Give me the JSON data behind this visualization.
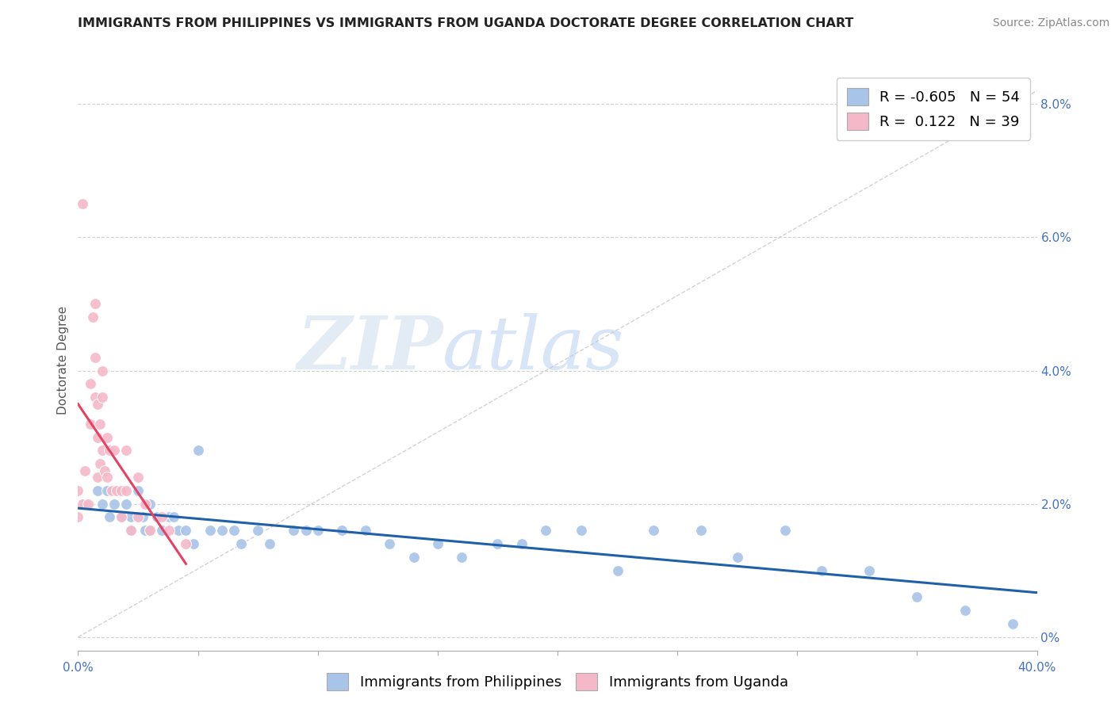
{
  "title": "IMMIGRANTS FROM PHILIPPINES VS IMMIGRANTS FROM UGANDA DOCTORATE DEGREE CORRELATION CHART",
  "source": "Source: ZipAtlas.com",
  "ylabel": "Doctorate Degree",
  "legend_blue_label": "Immigrants from Philippines",
  "legend_pink_label": "Immigrants from Uganda",
  "legend_r_blue": "-0.605",
  "legend_n_blue": "54",
  "legend_r_pink": " 0.122",
  "legend_n_pink": "39",
  "blue_color": "#a8c4e8",
  "pink_color": "#f5b8c8",
  "trendline_blue_color": "#2060a8",
  "trendline_pink_color": "#e84060",
  "trendline_dashed_color": "#c8c8c8",
  "watermark_zip": "ZIP",
  "watermark_atlas": "atlas",
  "xlim": [
    0.0,
    0.4
  ],
  "ylim": [
    -0.002,
    0.085
  ],
  "right_ytick_vals": [
    0.0,
    0.02,
    0.04,
    0.06,
    0.08
  ],
  "blue_x": [
    0.003,
    0.008,
    0.01,
    0.012,
    0.013,
    0.015,
    0.017,
    0.018,
    0.02,
    0.022,
    0.022,
    0.025,
    0.025,
    0.027,
    0.028,
    0.03,
    0.03,
    0.033,
    0.035,
    0.038,
    0.04,
    0.042,
    0.045,
    0.048,
    0.05,
    0.055,
    0.06,
    0.065,
    0.068,
    0.075,
    0.08,
    0.09,
    0.095,
    0.1,
    0.11,
    0.12,
    0.13,
    0.14,
    0.15,
    0.16,
    0.175,
    0.185,
    0.195,
    0.21,
    0.225,
    0.24,
    0.26,
    0.275,
    0.295,
    0.31,
    0.33,
    0.35,
    0.37,
    0.39
  ],
  "blue_y": [
    0.02,
    0.022,
    0.02,
    0.022,
    0.018,
    0.02,
    0.022,
    0.018,
    0.02,
    0.018,
    0.016,
    0.022,
    0.018,
    0.018,
    0.016,
    0.02,
    0.016,
    0.018,
    0.016,
    0.018,
    0.018,
    0.016,
    0.016,
    0.014,
    0.028,
    0.016,
    0.016,
    0.016,
    0.014,
    0.016,
    0.014,
    0.016,
    0.016,
    0.016,
    0.016,
    0.016,
    0.014,
    0.012,
    0.014,
    0.012,
    0.014,
    0.014,
    0.016,
    0.016,
    0.01,
    0.016,
    0.016,
    0.012,
    0.016,
    0.01,
    0.01,
    0.006,
    0.004,
    0.002
  ],
  "pink_x": [
    0.0,
    0.0,
    0.002,
    0.003,
    0.004,
    0.005,
    0.005,
    0.006,
    0.007,
    0.007,
    0.007,
    0.008,
    0.008,
    0.008,
    0.009,
    0.009,
    0.01,
    0.01,
    0.01,
    0.011,
    0.012,
    0.012,
    0.013,
    0.014,
    0.015,
    0.016,
    0.018,
    0.018,
    0.02,
    0.02,
    0.022,
    0.025,
    0.025,
    0.028,
    0.03,
    0.035,
    0.038,
    0.045,
    0.002
  ],
  "pink_y": [
    0.022,
    0.018,
    0.02,
    0.025,
    0.02,
    0.038,
    0.032,
    0.048,
    0.05,
    0.042,
    0.036,
    0.035,
    0.03,
    0.024,
    0.032,
    0.026,
    0.04,
    0.036,
    0.028,
    0.025,
    0.03,
    0.024,
    0.028,
    0.022,
    0.028,
    0.022,
    0.022,
    0.018,
    0.028,
    0.022,
    0.016,
    0.018,
    0.024,
    0.02,
    0.016,
    0.018,
    0.016,
    0.014,
    0.065
  ],
  "title_fontsize": 11.5,
  "axis_label_fontsize": 11,
  "tick_fontsize": 11,
  "legend_fontsize": 13,
  "source_fontsize": 10
}
